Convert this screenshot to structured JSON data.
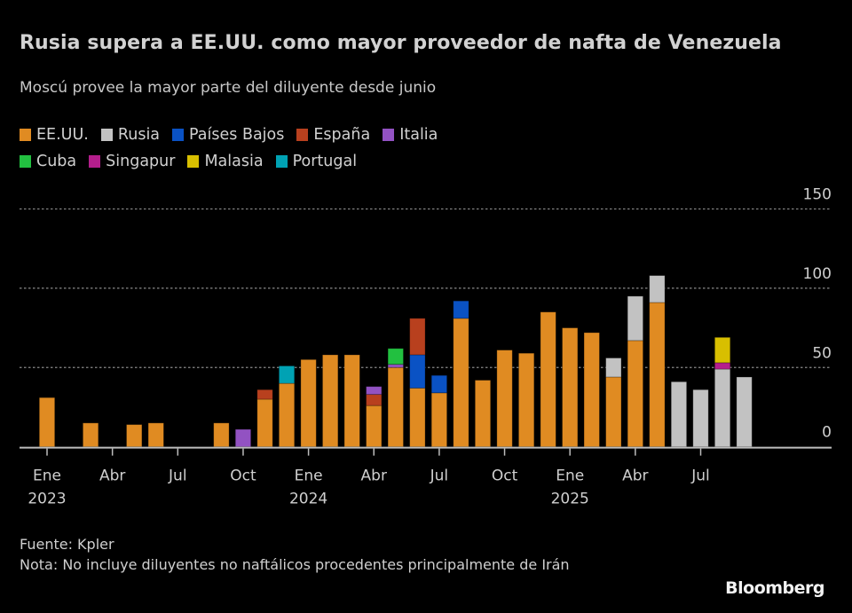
{
  "chart_data": {
    "type": "bar",
    "stacked": true,
    "title": "Rusia supera a EE.UU. como mayor proveedor de nafta de Venezuela",
    "subtitle": "Moscú provee la mayor parte del diluyente desde junio",
    "xlabel": "",
    "ylabel": "",
    "ylim": [
      0,
      150
    ],
    "yticks": [
      0,
      50,
      100,
      150
    ],
    "grid": true,
    "legend_position": "top-left",
    "categories": [
      "2023-01",
      "2023-02",
      "2023-03",
      "2023-04",
      "2023-05",
      "2023-06",
      "2023-07",
      "2023-08",
      "2023-09",
      "2023-10",
      "2023-11",
      "2023-12",
      "2024-01",
      "2024-02",
      "2024-03",
      "2024-04",
      "2024-05",
      "2024-06",
      "2024-07",
      "2024-08",
      "2024-09",
      "2024-10",
      "2024-11",
      "2024-12",
      "2025-01",
      "2025-02",
      "2025-03",
      "2025-04",
      "2025-05",
      "2025-06",
      "2025-07",
      "2025-08",
      "2025-09"
    ],
    "x_tick_labels": [
      {
        "index": 0,
        "month": "Ene",
        "year": "2023"
      },
      {
        "index": 3,
        "month": "Abr",
        "year": ""
      },
      {
        "index": 6,
        "month": "Jul",
        "year": ""
      },
      {
        "index": 9,
        "month": "Oct",
        "year": ""
      },
      {
        "index": 12,
        "month": "Ene",
        "year": "2024"
      },
      {
        "index": 15,
        "month": "Abr",
        "year": ""
      },
      {
        "index": 18,
        "month": "Jul",
        "year": ""
      },
      {
        "index": 21,
        "month": "Oct",
        "year": ""
      },
      {
        "index": 24,
        "month": "Ene",
        "year": "2025"
      },
      {
        "index": 27,
        "month": "Abr",
        "year": ""
      },
      {
        "index": 30,
        "month": "Jul",
        "year": ""
      }
    ],
    "series": [
      {
        "name": "EE.UU.",
        "color": "#e08b22",
        "values": [
          31,
          0,
          15,
          0,
          14,
          15,
          0,
          0,
          15,
          0,
          30,
          40,
          55,
          58,
          58,
          26,
          50,
          37,
          34,
          81,
          42,
          61,
          59,
          85,
          75,
          72,
          44,
          67,
          91,
          0,
          0,
          0,
          0
        ]
      },
      {
        "name": "Rusia",
        "color": "#c2c2c2",
        "values": [
          0,
          0,
          0,
          0,
          0,
          0,
          0,
          0,
          0,
          0,
          0,
          0,
          0,
          0,
          0,
          0,
          0,
          0,
          0,
          0,
          0,
          0,
          0,
          0,
          0,
          0,
          12,
          28,
          17,
          41,
          36,
          49,
          44
        ]
      },
      {
        "name": "Países Bajos",
        "color": "#0a52c4",
        "values": [
          0,
          0,
          0,
          0,
          0,
          0,
          0,
          0,
          0,
          0,
          0,
          0,
          0,
          0,
          0,
          0,
          0,
          21,
          11,
          11,
          0,
          0,
          0,
          0,
          0,
          0,
          0,
          0,
          0,
          0,
          0,
          0,
          0
        ]
      },
      {
        "name": "España",
        "color": "#b8401e",
        "values": [
          0,
          0,
          0,
          0,
          0,
          0,
          0,
          0,
          0,
          0,
          6,
          0,
          0,
          0,
          0,
          7,
          0,
          23,
          0,
          0,
          0,
          0,
          0,
          0,
          0,
          0,
          0,
          0,
          0,
          0,
          0,
          0,
          0
        ]
      },
      {
        "name": "Italia",
        "color": "#9252c2",
        "values": [
          0,
          0,
          0,
          0,
          0,
          0,
          0,
          0,
          0,
          11,
          0,
          0,
          0,
          0,
          0,
          5,
          2,
          0,
          0,
          0,
          0,
          0,
          0,
          0,
          0,
          0,
          0,
          0,
          0,
          0,
          0,
          0,
          0
        ]
      },
      {
        "name": "Cuba",
        "color": "#22c040",
        "values": [
          0,
          0,
          0,
          0,
          0,
          0,
          0,
          0,
          0,
          0,
          0,
          0,
          0,
          0,
          0,
          0,
          10,
          0,
          0,
          0,
          0,
          0,
          0,
          0,
          0,
          0,
          0,
          0,
          0,
          0,
          0,
          0,
          0
        ]
      },
      {
        "name": "Singapur",
        "color": "#b41e8c",
        "values": [
          0,
          0,
          0,
          0,
          0,
          0,
          0,
          0,
          0,
          0,
          0,
          0,
          0,
          0,
          0,
          0,
          0,
          0,
          0,
          0,
          0,
          0,
          0,
          0,
          0,
          0,
          0,
          0,
          0,
          0,
          0,
          4,
          0
        ]
      },
      {
        "name": "Malasia",
        "color": "#d8bf00",
        "values": [
          0,
          0,
          0,
          0,
          0,
          0,
          0,
          0,
          0,
          0,
          0,
          0,
          0,
          0,
          0,
          0,
          0,
          0,
          0,
          0,
          0,
          0,
          0,
          0,
          0,
          0,
          0,
          0,
          0,
          0,
          0,
          16,
          0
        ]
      },
      {
        "name": "Portugal",
        "color": "#00a2b4",
        "values": [
          0,
          0,
          0,
          0,
          0,
          0,
          0,
          0,
          0,
          0,
          0,
          11,
          0,
          0,
          0,
          0,
          0,
          0,
          0,
          0,
          0,
          0,
          0,
          0,
          0,
          0,
          0,
          0,
          0,
          0,
          0,
          0,
          0
        ]
      }
    ]
  },
  "legend": {
    "row1": [
      {
        "label": "EE.UU.",
        "color": "#e08b22"
      },
      {
        "label": "Rusia",
        "color": "#c2c2c2"
      },
      {
        "label": "Países Bajos",
        "color": "#0a52c4"
      },
      {
        "label": "España",
        "color": "#b8401e"
      },
      {
        "label": "Italia",
        "color": "#9252c2"
      }
    ],
    "row2": [
      {
        "label": "Cuba",
        "color": "#22c040"
      },
      {
        "label": "Singapur",
        "color": "#b41e8c"
      },
      {
        "label": "Malasia",
        "color": "#d8bf00"
      },
      {
        "label": "Portugal",
        "color": "#00a2b4"
      }
    ]
  },
  "footer": {
    "source": "Fuente: Kpler",
    "note": "Nota: No incluye diluyentes no naftálicos procedentes principalmente de Irán"
  },
  "brand": "Bloomberg",
  "colors": {
    "background": "#000000",
    "grid": "#8a8a8a",
    "axis": "#bdbdbd",
    "text": "#cfcfcf"
  }
}
